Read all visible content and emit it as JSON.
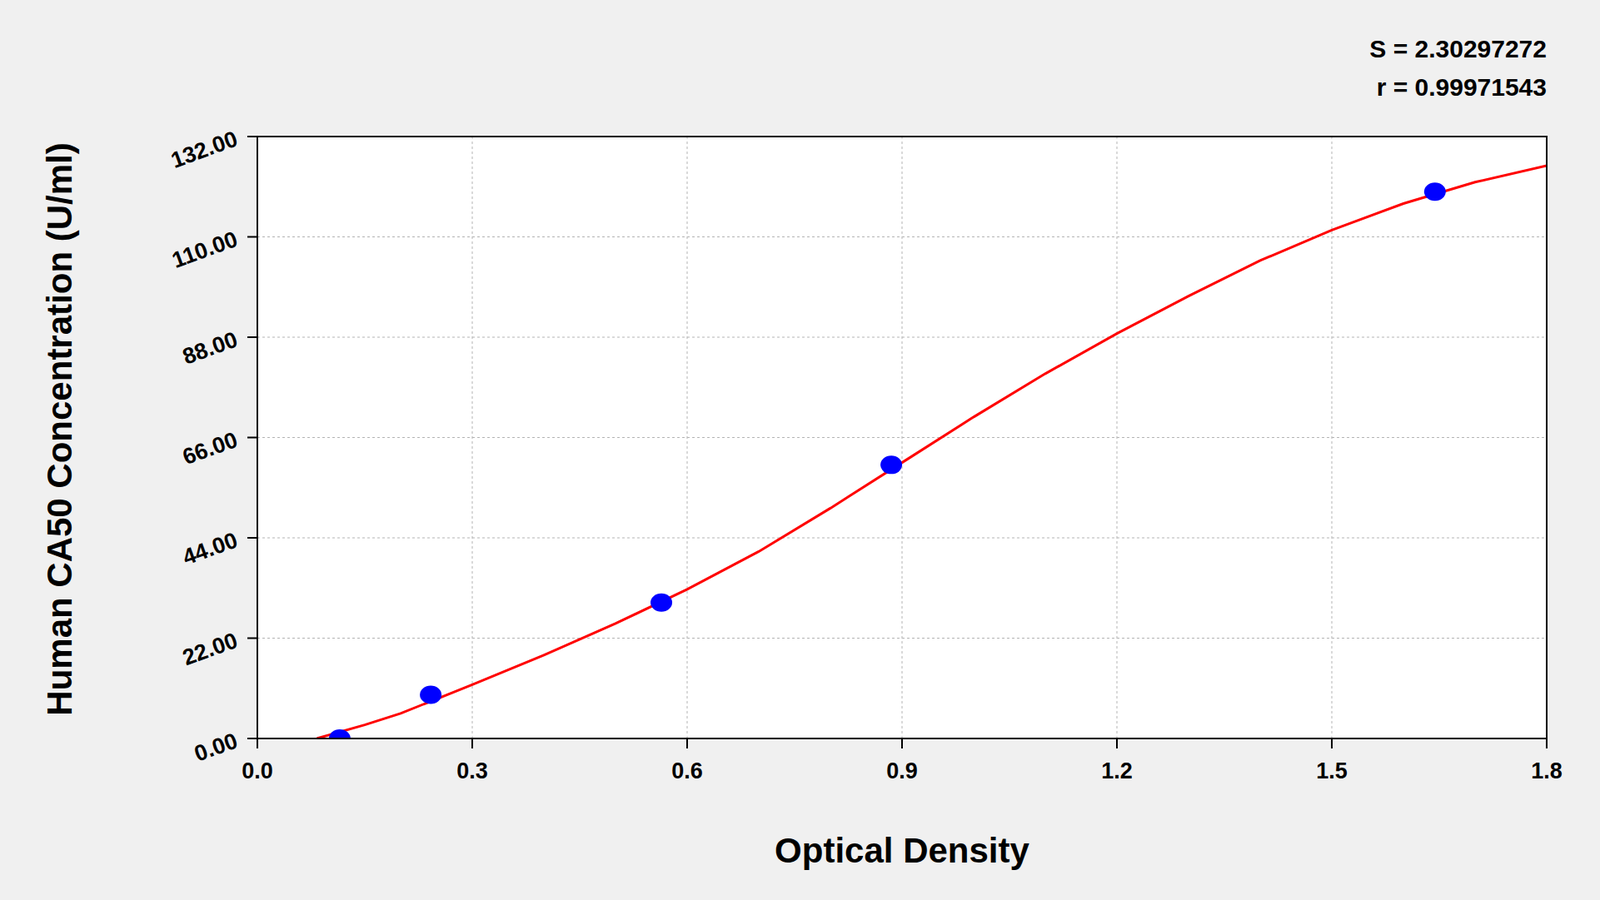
{
  "chart_data": {
    "type": "scatter",
    "annotations": [
      "S = 2.30297272",
      "r = 0.99971543"
    ],
    "x_label": "Optical Density",
    "y_label": "Human CA50 Concentration (U/ml)",
    "xlim": [
      0,
      1.8
    ],
    "ylim": [
      0,
      132
    ],
    "xticks": [
      {
        "value": 0,
        "label": "0.0"
      },
      0.3,
      0.6,
      0.9,
      1.2,
      1.5,
      1.8
    ],
    "yticks": [
      {
        "value": 0,
        "label": "0.00"
      },
      {
        "value": 22,
        "label": "22.00"
      },
      {
        "value": 44,
        "label": "44.00"
      },
      {
        "value": 66,
        "label": "66.00"
      },
      {
        "value": 88,
        "label": "88.00"
      },
      {
        "value": 110,
        "label": "110.00"
      },
      {
        "value": 132,
        "label": "132.00"
      }
    ],
    "grid": true,
    "series": [
      {
        "type": "scatter",
        "color": "#0000ff",
        "marker": "circle",
        "x": [
          0.115,
          0.242,
          0.564,
          0.885,
          1.644
        ],
        "values": [
          0,
          9.6,
          29.8,
          60.0,
          119.9
        ]
      },
      {
        "type": "line",
        "color": "#ff0000",
        "line_style": "solid",
        "x": [
          0.083,
          0.15,
          0.2,
          0.3,
          0.4,
          0.5,
          0.6,
          0.7,
          0.8,
          0.9,
          1.0,
          1.1,
          1.2,
          1.3,
          1.4,
          1.5,
          1.6,
          1.7,
          1.8
        ],
        "values": [
          0,
          3.0,
          5.5,
          11.8,
          18.3,
          25.2,
          32.7,
          41,
          50.5,
          60.5,
          70.5,
          80,
          88.8,
          97,
          104.8,
          111.5,
          117.3,
          122,
          125.6
        ]
      }
    ]
  }
}
